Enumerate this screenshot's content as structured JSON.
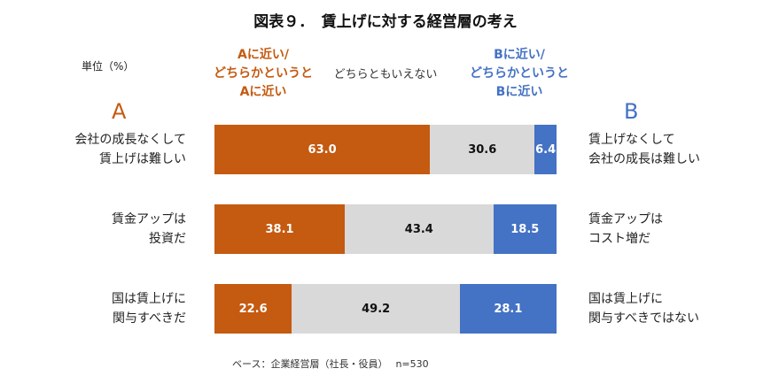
{
  "title": "図表９．　賃上げに対する経営層の考え",
  "unit": "単位（%）",
  "legend": {
    "a": "Aに近い/\nどちらかというと\nAに近い",
    "neutral": "どちらともいえない",
    "b": "Bに近い/\nどちらかというと\nBに近い"
  },
  "side_labels": {
    "a": "A",
    "b": "B"
  },
  "note": "ベース：企業経営層（社長・役員）　 n=530",
  "colors": {
    "a": "#C55A11",
    "neutral": "#D9D9D9",
    "b": "#4472C4"
  },
  "chart_data": {
    "type": "bar",
    "orientation": "horizontal",
    "stacked": true,
    "xlim": [
      0,
      100
    ],
    "categories_a": [
      "会社の成長なくして\n賃上げは難しい",
      "賃金アップは\n投資だ",
      "国は賃上げに\n関与すべきだ"
    ],
    "categories_b": [
      "賃上げなくして\n会社の成長は難しい",
      "賃金アップは\nコスト増だ",
      "国は賃上げに\n関与すべきではない"
    ],
    "series": [
      {
        "name": "Aに近い/どちらかというとAに近い",
        "values": [
          63.0,
          38.1,
          22.6
        ]
      },
      {
        "name": "どちらともいえない",
        "values": [
          30.6,
          43.4,
          49.2
        ]
      },
      {
        "name": "Bに近い/どちらかというとBに近い",
        "values": [
          6.4,
          18.5,
          28.1
        ]
      }
    ]
  }
}
